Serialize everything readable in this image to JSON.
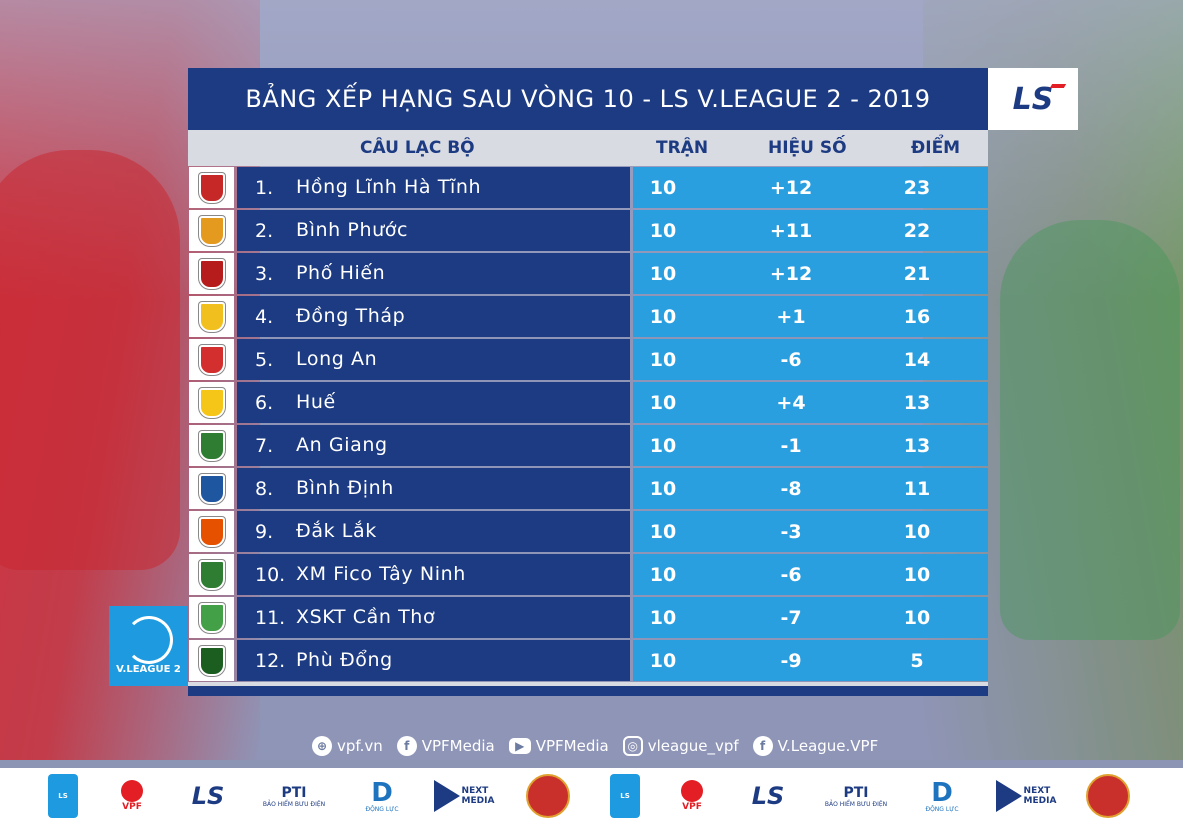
{
  "title": "BẢNG XẾP HẠNG SAU VÒNG 10 - LS V.LEAGUE 2 - 2019",
  "brand_logo": "LS",
  "headers": {
    "club": "CÂU LẠC BỘ",
    "played": "TRẬN",
    "goal_diff": "HIỆU SỐ",
    "points": "ĐIỂM"
  },
  "colors": {
    "title_bg": "#1d3b82",
    "name_bg": "#1d3b82",
    "stat_bg": "#2a9fe0",
    "header_bg": "#d9dbe3"
  },
  "standings": [
    {
      "rank": "1.",
      "club": "Hồng Lĩnh Hà Tĩnh",
      "played": "10",
      "gd": "+12",
      "pts": "23",
      "crest_color": "#c62828"
    },
    {
      "rank": "2.",
      "club": "Bình Phước",
      "played": "10",
      "gd": "+11",
      "pts": "22",
      "crest_color": "#e39a1e"
    },
    {
      "rank": "3.",
      "club": "Phố Hiến",
      "played": "10",
      "gd": "+12",
      "pts": "21",
      "crest_color": "#b71c1c"
    },
    {
      "rank": "4.",
      "club": "Đồng Tháp",
      "played": "10",
      "gd": "+1",
      "pts": "16",
      "crest_color": "#f2c01e"
    },
    {
      "rank": "5.",
      "club": "Long An",
      "played": "10",
      "gd": "-6",
      "pts": "14",
      "crest_color": "#d32f2f"
    },
    {
      "rank": "6.",
      "club": "Huế",
      "played": "10",
      "gd": "+4",
      "pts": "13",
      "crest_color": "#f5c518"
    },
    {
      "rank": "7.",
      "club": "An Giang",
      "played": "10",
      "gd": "-1",
      "pts": "13",
      "crest_color": "#2e7d32"
    },
    {
      "rank": "8.",
      "club": "Bình Định",
      "played": "10",
      "gd": "-8",
      "pts": "11",
      "crest_color": "#1e56a0"
    },
    {
      "rank": "9.",
      "club": "Đắk Lắk",
      "played": "10",
      "gd": "-3",
      "pts": "10",
      "crest_color": "#e65100"
    },
    {
      "rank": "10.",
      "club": "XM Fico Tây Ninh",
      "played": "10",
      "gd": "-6",
      "pts": "10",
      "crest_color": "#2e7d32"
    },
    {
      "rank": "11.",
      "club": "XSKT Cần Thơ",
      "played": "10",
      "gd": "-7",
      "pts": "10",
      "crest_color": "#43a047"
    },
    {
      "rank": "12.",
      "club": "Phù Đổng",
      "played": "10",
      "gd": "-9",
      "pts": "5",
      "crest_color": "#1b5e20"
    }
  ],
  "badge": {
    "label": "V.LEAGUE 2"
  },
  "social": [
    {
      "icon": "globe-icon",
      "glyph": "⊕",
      "label": "vpf.vn"
    },
    {
      "icon": "facebook-icon",
      "glyph": "f",
      "label": "VPFMedia"
    },
    {
      "icon": "youtube-icon",
      "glyph": "▶",
      "label": "VPFMedia"
    },
    {
      "icon": "instagram-icon",
      "glyph": "◎",
      "label": "vleague_vpf"
    },
    {
      "icon": "facebook-icon",
      "glyph": "f",
      "label": "V.League.VPF"
    }
  ],
  "sponsors": {
    "vpf": "VPF",
    "ls": "LS",
    "pti": "PTI",
    "pti_sub": "BẢO HIỂM BƯU ĐIỆN",
    "dl": "D",
    "dl_sub": "ĐỘNG LỰC",
    "next_line1": "NEXT",
    "next_line2": "MEDIA",
    "vl_small": "LS"
  }
}
